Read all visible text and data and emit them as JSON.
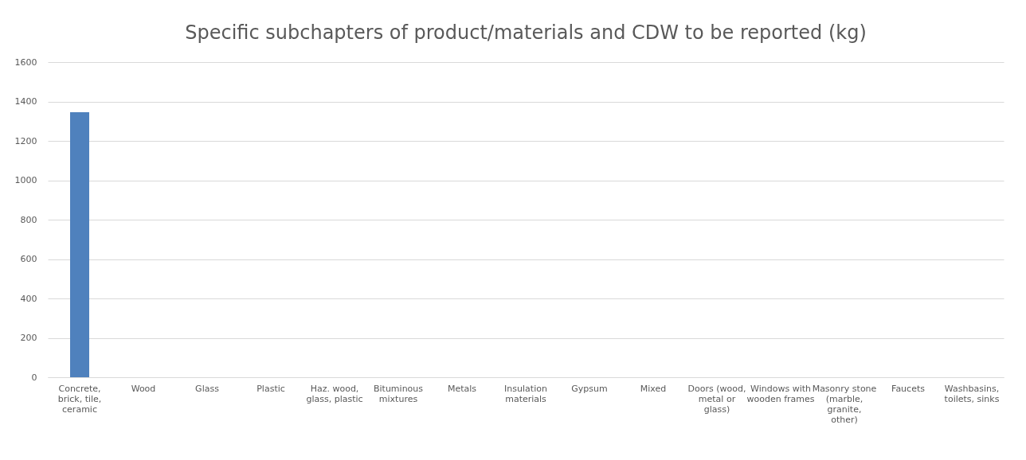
{
  "chart_data": {
    "type": "bar",
    "title": "Specific subchapters of product/materials and CDW to be reported (kg)",
    "categories": [
      "Concrete, brick, tile, ceramic",
      "Wood",
      "Glass",
      "Plastic",
      "Haz. wood, glass, plastic",
      "Bituminous mixtures",
      "Metals",
      "Insulation materials",
      "Gypsum",
      "Mixed",
      "Doors (wood, metal or glass)",
      "Windows with wooden frames",
      "Masonry stone (marble, granite, other)",
      "Faucets",
      "Washbasins, toilets, sinks"
    ],
    "values": [
      1345,
      0,
      0,
      0,
      0,
      0,
      0,
      0,
      0,
      0,
      0,
      0,
      0,
      0,
      0
    ],
    "color": "#4f81bd",
    "ylim": [
      0,
      1600
    ],
    "yticks": [
      0,
      200,
      400,
      600,
      800,
      1000,
      1200,
      1400,
      1600
    ],
    "grid": "y"
  }
}
